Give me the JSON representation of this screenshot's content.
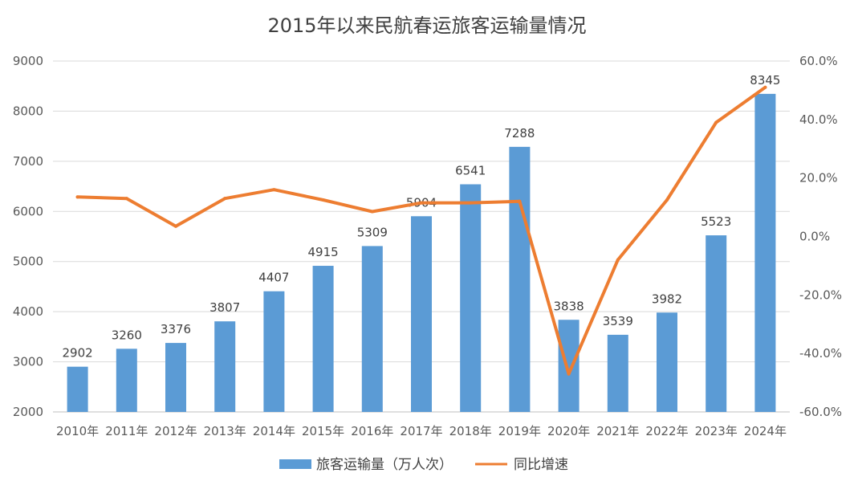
{
  "chart_data": {
    "type": "bar",
    "title": "2015年以来民航春运旅客运输量情况",
    "categories": [
      "2010年",
      "2011年",
      "2012年",
      "2013年",
      "2014年",
      "2015年",
      "2016年",
      "2017年",
      "2018年",
      "2019年",
      "2020年",
      "2021年",
      "2022年",
      "2023年",
      "2024年"
    ],
    "y_left": {
      "ylim": [
        2000,
        9000
      ],
      "ticks": [
        2000,
        3000,
        4000,
        5000,
        6000,
        7000,
        8000,
        9000
      ]
    },
    "y_right": {
      "ylim": [
        -60,
        60
      ],
      "ticks": [
        -60,
        -40,
        -20,
        0,
        20,
        40,
        60
      ],
      "tick_labels": [
        "-60.0%",
        "-40.0%",
        "-20.0%",
        "0.0%",
        "20.0%",
        "40.0%",
        "60.0%"
      ]
    },
    "series": [
      {
        "name": "旅客运输量（万人次）",
        "type": "bar",
        "axis": "left",
        "color": "#5b9bd5",
        "values": [
          2902,
          3260,
          3376,
          3807,
          4407,
          4915,
          5309,
          5904,
          6541,
          7288,
          3838,
          3539,
          3982,
          5523,
          8345
        ],
        "labels": [
          "2902",
          "3260",
          "3376",
          "3807",
          "4407",
          "4915",
          "5309",
          "5904",
          "6541",
          "7288",
          "3838",
          "3539",
          "3982",
          "5523",
          "8345"
        ]
      },
      {
        "name": "同比增速",
        "type": "line",
        "axis": "right",
        "color": "#ed7d31",
        "values": [
          13.5,
          13,
          3.5,
          13,
          16,
          12.5,
          8.5,
          11.5,
          11.5,
          12,
          -47,
          -8,
          12.5,
          39,
          51
        ]
      }
    ],
    "grid": true,
    "legend_position": "bottom"
  }
}
